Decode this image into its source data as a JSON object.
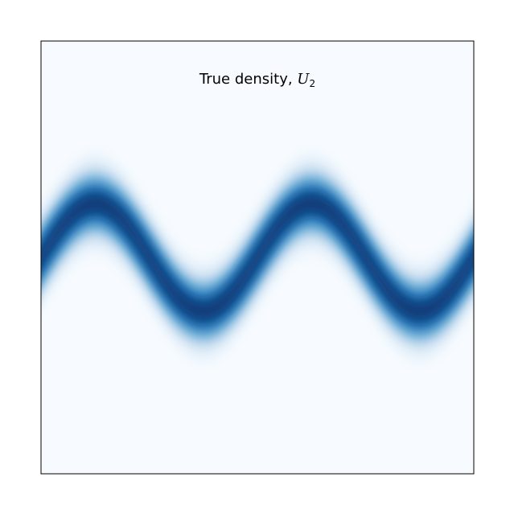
{
  "chart_data": {
    "type": "heatmap",
    "title_prefix": "True density, ",
    "title_symbol": "U",
    "title_subscript": "2",
    "xlabel": "",
    "ylabel": "",
    "xlim": [
      -4,
      4
    ],
    "ylim": [
      -4,
      4
    ],
    "grid": false,
    "colormap": "Blues",
    "density": "exp(-0.5 * ((z2 - sin(2*pi*z1/4)) / 0.4)^2)",
    "curve": {
      "description": "ridge of high density along z2 = sin(2*pi*z1/4)",
      "amplitude": 1,
      "period": 4,
      "width": 0.4
    }
  },
  "colors": {
    "low": "#f7fbff",
    "high": "#08306b",
    "frame": "#000000"
  }
}
